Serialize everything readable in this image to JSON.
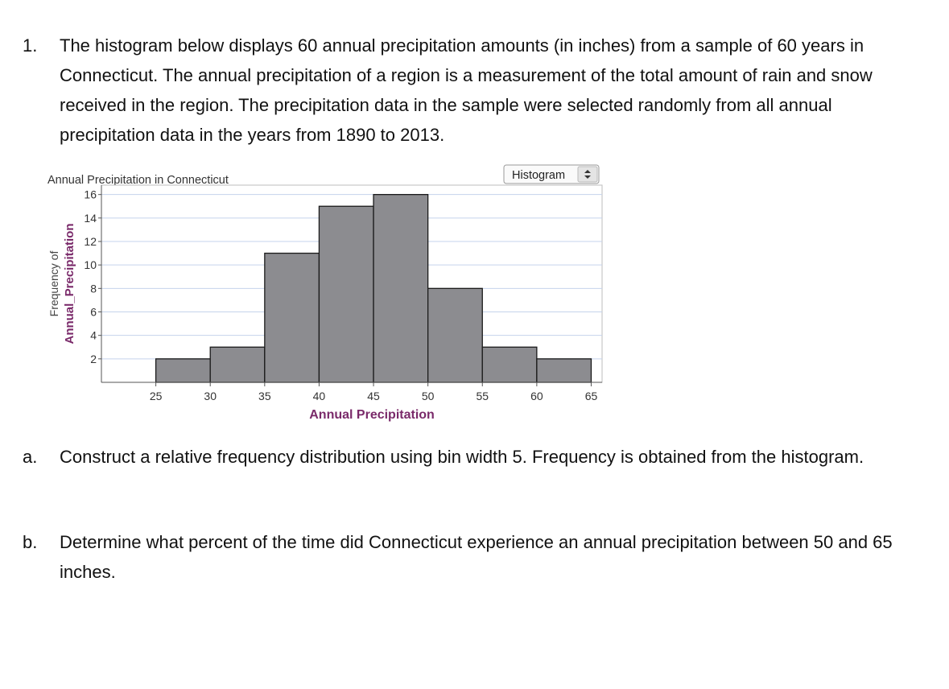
{
  "question1": {
    "number": "1.",
    "text": "The histogram below displays 60 annual precipitation amounts (in inches) from a sample of 60 years in Connecticut. The annual precipitation of a region is a measurement of the total amount of rain and snow received in the region. The precipitation data in the sample were selected randomly from all annual precipitation data in the years from 1890 to 2013."
  },
  "part_a": {
    "label": "a.",
    "text": "Construct a relative frequency distribution using bin width 5. Frequency is obtained from the histogram."
  },
  "part_b": {
    "label": "b.",
    "text": "Determine what percent of the time did Connecticut experience an annual precipitation between 50 and 65 inches."
  },
  "chart_data": {
    "type": "bar",
    "title": "Annual Precipitation in Connecticut",
    "mode_select": "Histogram",
    "xlabel": "Annual Precipitation",
    "ylabel_line1": "Frequency of",
    "ylabel_line2": "Annual_Precipitation",
    "bins": [
      [
        25,
        30
      ],
      [
        30,
        35
      ],
      [
        35,
        40
      ],
      [
        40,
        45
      ],
      [
        45,
        50
      ],
      [
        50,
        55
      ],
      [
        55,
        60
      ],
      [
        60,
        65
      ]
    ],
    "values": [
      2,
      3,
      11,
      15,
      16,
      8,
      3,
      2
    ],
    "x_ticks": [
      "25",
      "30",
      "35",
      "40",
      "45",
      "50",
      "55",
      "60",
      "65"
    ],
    "y_ticks": [
      "2",
      "4",
      "6",
      "8",
      "10",
      "12",
      "14",
      "16"
    ],
    "xlim": [
      20,
      66
    ],
    "ylim": [
      0,
      16.8
    ],
    "grid": true,
    "colors": {
      "bar_fill": "#8c8c90",
      "bar_stroke": "#1a1a1a",
      "grid": "#c5d3ec",
      "xlabel": "#7a2a6a",
      "ylabel2": "#7a2a6a"
    }
  }
}
